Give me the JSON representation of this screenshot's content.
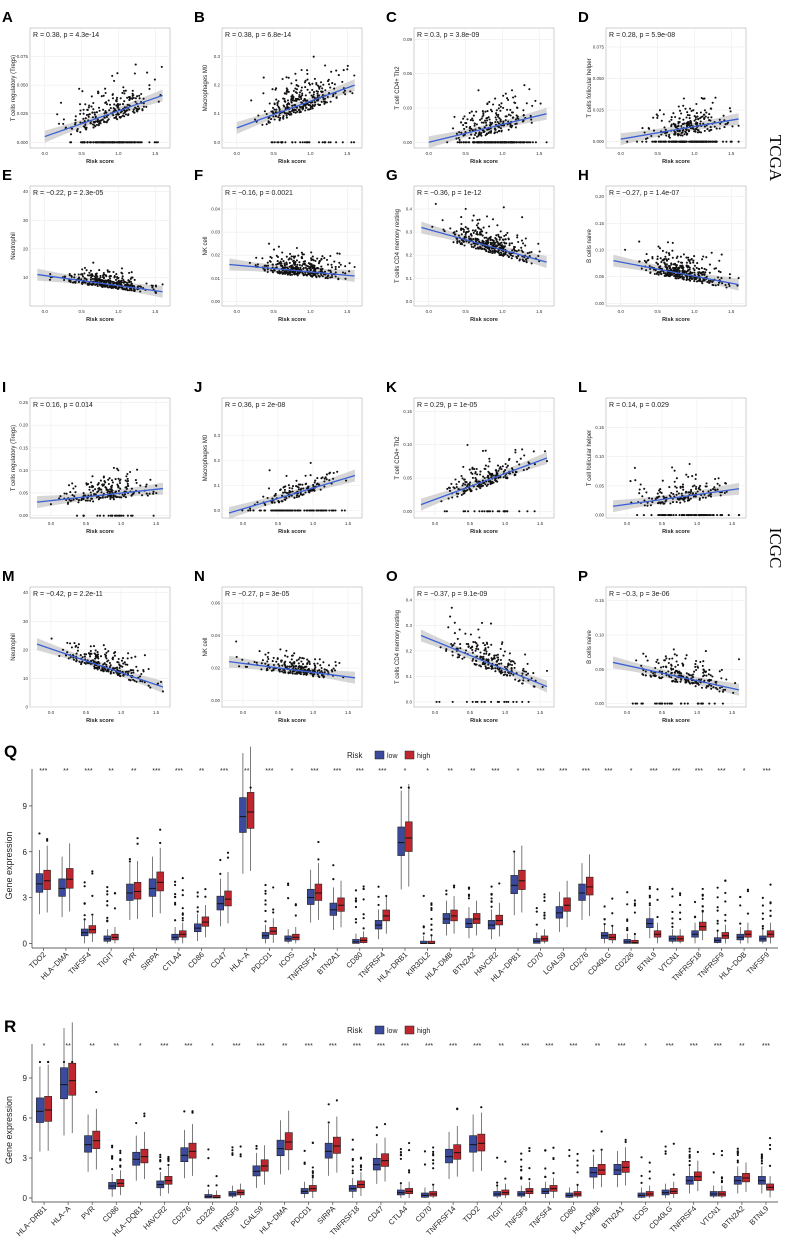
{
  "colors": {
    "low": "#3b4a9c",
    "high": "#c0262e",
    "fit": "#3a60d6",
    "band": "#c8c8c8"
  },
  "side_labels": {
    "tcga": "TCGA",
    "icgc": "ICGC"
  },
  "chart_data": [
    {
      "type": "scatter",
      "panel": "A",
      "ylabel": "T cells regulatory (Tregs)",
      "xlabel": "Risk score",
      "stat": "R = 0.38, p = 4.3e-14",
      "x_ticks": [
        "0.0",
        "0.5",
        "1.0",
        "1.5"
      ],
      "xlim": [
        -0.2,
        1.7
      ],
      "y_ticks": [
        "0.000",
        "0.025",
        "0.050",
        "0.075"
      ],
      "ylim": [
        -0.005,
        0.1
      ],
      "fit": [
        [
          0.0,
          0.005
        ],
        [
          1.6,
          0.041
        ]
      ],
      "n": 350,
      "zero_frac": 0.3,
      "sd": 0.02,
      "seed": 11
    },
    {
      "type": "scatter",
      "panel": "B",
      "ylabel": "Macrophages M0",
      "xlabel": "Risk score",
      "stat": "R = 0.38, p = 6.8e-14",
      "x_ticks": [
        "0.0",
        "0.5",
        "1.0",
        "1.5"
      ],
      "xlim": [
        -0.2,
        1.7
      ],
      "y_ticks": [
        "0.0",
        "0.1",
        "0.2",
        "0.3"
      ],
      "ylim": [
        -0.02,
        0.4
      ],
      "fit": [
        [
          0.0,
          0.05
        ],
        [
          1.6,
          0.2
        ]
      ],
      "n": 350,
      "zero_frac": 0.1,
      "sd": 0.08,
      "seed": 12
    },
    {
      "type": "scatter",
      "panel": "C",
      "ylabel": "T cell CD4+ Th2",
      "xlabel": "Risk score",
      "stat": "R = 0.3, p = 3.8e-09",
      "x_ticks": [
        "0.0",
        "0.5",
        "1.0",
        "1.5"
      ],
      "xlim": [
        -0.2,
        1.7
      ],
      "y_ticks": [
        "0.00",
        "0.03",
        "0.06",
        "0.09"
      ],
      "ylim": [
        -0.005,
        0.1
      ],
      "fit": [
        [
          0.0,
          0.0
        ],
        [
          1.6,
          0.025
        ]
      ],
      "n": 350,
      "zero_frac": 0.45,
      "sd": 0.018,
      "seed": 13
    },
    {
      "type": "scatter",
      "panel": "D",
      "ylabel": "T cells follicular helper",
      "xlabel": "Risk score",
      "stat": "R = 0.28, p = 5.9e-08",
      "x_ticks": [
        "0.0",
        "0.5",
        "1.0",
        "1.5"
      ],
      "xlim": [
        -0.2,
        1.7
      ],
      "y_ticks": [
        "0.000",
        "0.025",
        "0.050",
        "0.075"
      ],
      "ylim": [
        -0.005,
        0.09
      ],
      "fit": [
        [
          0.0,
          0.002
        ],
        [
          1.6,
          0.018
        ]
      ],
      "n": 350,
      "zero_frac": 0.4,
      "sd": 0.016,
      "seed": 14
    },
    {
      "type": "scatter",
      "panel": "E",
      "ylabel": "Neutrophil",
      "xlabel": "Risk score",
      "stat": "R = −0.22, p = 2.3e-05",
      "x_ticks": [
        "0.0",
        "0.5",
        "1.0",
        "1.5"
      ],
      "xlim": [
        -0.2,
        1.7
      ],
      "y_ticks": [
        "10",
        "20",
        "30",
        "40"
      ],
      "ylim": [
        0,
        42
      ],
      "fit": [
        [
          -0.1,
          11
        ],
        [
          1.6,
          5
        ]
      ],
      "n": 350,
      "zero_frac": 0,
      "sd": 3.5,
      "seed": 15
    },
    {
      "type": "scatter",
      "panel": "F",
      "ylabel": "NK cell",
      "xlabel": "Risk score",
      "stat": "R = −0.16, p = 0.0021",
      "x_ticks": [
        "0.0",
        "0.5",
        "1.0",
        "1.5"
      ],
      "xlim": [
        -0.2,
        1.7
      ],
      "y_ticks": [
        "0.00",
        "0.01",
        "0.02",
        "0.03",
        "0.04"
      ],
      "ylim": [
        -0.002,
        0.05
      ],
      "fit": [
        [
          -0.1,
          0.016
        ],
        [
          1.6,
          0.011
        ]
      ],
      "n": 350,
      "zero_frac": 0,
      "sd": 0.006,
      "seed": 16
    },
    {
      "type": "scatter",
      "panel": "G",
      "ylabel": "T cells CD4 memory resting",
      "xlabel": "Risk score",
      "stat": "R = −0.36, p = 1e-12",
      "x_ticks": [
        "0.0",
        "0.5",
        "1.0",
        "1.5"
      ],
      "xlim": [
        -0.2,
        1.7
      ],
      "y_ticks": [
        "0.0",
        "0.1",
        "0.2",
        "0.3",
        "0.4"
      ],
      "ylim": [
        -0.02,
        0.5
      ],
      "fit": [
        [
          -0.1,
          0.32
        ],
        [
          1.6,
          0.17
        ]
      ],
      "n": 350,
      "zero_frac": 0,
      "sd": 0.075,
      "seed": 17
    },
    {
      "type": "scatter",
      "panel": "H",
      "ylabel": "B cells naive",
      "xlabel": "Risk score",
      "stat": "R = −0.27, p = 1.4e-07",
      "x_ticks": [
        "0.0",
        "0.5",
        "1.0",
        "1.5"
      ],
      "xlim": [
        -0.2,
        1.7
      ],
      "y_ticks": [
        "0.00",
        "0.05",
        "0.10",
        "0.15",
        "0.20"
      ],
      "ylim": [
        -0.005,
        0.22
      ],
      "fit": [
        [
          -0.1,
          0.08
        ],
        [
          1.6,
          0.035
        ]
      ],
      "n": 350,
      "zero_frac": 0,
      "sd": 0.03,
      "seed": 18
    },
    {
      "type": "scatter",
      "panel": "I",
      "ylabel": "T cells regulatory (Tregs)",
      "xlabel": "Risk score",
      "stat": "R = 0.16, p = 0.014",
      "x_ticks": [
        "0.0",
        "0.5",
        "1.0",
        "1.5"
      ],
      "xlim": [
        -0.3,
        1.7
      ],
      "y_ticks": [
        "0.00",
        "0.05",
        "0.10",
        "0.15",
        "0.20",
        "0.25"
      ],
      "ylim": [
        -0.005,
        0.26
      ],
      "fit": [
        [
          -0.2,
          0.03
        ],
        [
          1.6,
          0.06
        ]
      ],
      "n": 230,
      "zero_frac": 0.12,
      "sd": 0.035,
      "seed": 21
    },
    {
      "type": "scatter",
      "panel": "J",
      "ylabel": "Macrophages M0",
      "xlabel": "Risk score",
      "stat": "R = 0.36, p = 2e-08",
      "x_ticks": [
        "0.0",
        "0.5",
        "1.0",
        "1.5"
      ],
      "xlim": [
        -0.3,
        1.7
      ],
      "y_ticks": [
        "0.0",
        "0.1",
        "0.2",
        "0.3"
      ],
      "ylim": [
        -0.03,
        0.45
      ],
      "fit": [
        [
          -0.2,
          -0.01
        ],
        [
          1.6,
          0.14
        ]
      ],
      "n": 230,
      "zero_frac": 0.35,
      "sd": 0.05,
      "seed": 22
    },
    {
      "type": "scatter",
      "panel": "K",
      "ylabel": "T cell CD4+ Th2",
      "xlabel": "Risk score",
      "stat": "R = 0.29, p = 1e-05",
      "x_ticks": [
        "0.0",
        "0.5",
        "1.0",
        "1.5"
      ],
      "xlim": [
        -0.3,
        1.7
      ],
      "y_ticks": [
        "0.00",
        "0.05",
        "0.10",
        "0.15"
      ],
      "ylim": [
        -0.01,
        0.17
      ],
      "fit": [
        [
          -0.2,
          0.01
        ],
        [
          1.6,
          0.08
        ]
      ],
      "n": 230,
      "zero_frac": 0.1,
      "sd": 0.025,
      "seed": 23
    },
    {
      "type": "scatter",
      "panel": "L",
      "ylabel": "T cell follicular helper",
      "xlabel": "Risk score",
      "stat": "R = 0.14, p = 0.029",
      "x_ticks": [
        "0.0",
        "0.5",
        "1.0",
        "1.5"
      ],
      "xlim": [
        -0.3,
        1.7
      ],
      "y_ticks": [
        "0.00",
        "0.05",
        "0.10",
        "0.15"
      ],
      "ylim": [
        -0.005,
        0.2
      ],
      "fit": [
        [
          -0.2,
          0.015
        ],
        [
          1.6,
          0.045
        ]
      ],
      "n": 230,
      "zero_frac": 0.3,
      "sd": 0.03,
      "seed": 24
    },
    {
      "type": "scatter",
      "panel": "M",
      "ylabel": "Neutrophil",
      "xlabel": "Risk score",
      "stat": "R = −0.42, p = 2.2e-11",
      "x_ticks": [
        "0.0",
        "0.5",
        "1.0",
        "1.5"
      ],
      "xlim": [
        -0.3,
        1.7
      ],
      "y_ticks": [
        "0",
        "10",
        "20",
        "30",
        "40"
      ],
      "ylim": [
        0,
        42
      ],
      "fit": [
        [
          -0.2,
          22
        ],
        [
          1.6,
          7
        ]
      ],
      "n": 230,
      "zero_frac": 0,
      "sd": 5,
      "seed": 25
    },
    {
      "type": "scatter",
      "panel": "N",
      "ylabel": "NK cell",
      "xlabel": "Risk score",
      "stat": "R = −0.27, p = 3e-05",
      "x_ticks": [
        "0.0",
        "0.5",
        "1.0",
        "1.5"
      ],
      "xlim": [
        -0.3,
        1.7
      ],
      "y_ticks": [
        "0.00",
        "0.02",
        "0.04",
        "0.06"
      ],
      "ylim": [
        -0.004,
        0.07
      ],
      "fit": [
        [
          -0.2,
          0.024
        ],
        [
          1.6,
          0.014
        ]
      ],
      "n": 230,
      "zero_frac": 0,
      "sd": 0.007,
      "seed": 26
    },
    {
      "type": "scatter",
      "panel": "O",
      "ylabel": "T cells CD4 memory resting",
      "xlabel": "Risk score",
      "stat": "R = −0.37, p = 9.1e-09",
      "x_ticks": [
        "0.0",
        "0.5",
        "1.0",
        "1.5"
      ],
      "xlim": [
        -0.3,
        1.7
      ],
      "y_ticks": [
        "0.0",
        "0.1",
        "0.2",
        "0.3",
        "0.4"
      ],
      "ylim": [
        -0.02,
        0.45
      ],
      "fit": [
        [
          -0.2,
          0.26
        ],
        [
          1.6,
          0.06
        ]
      ],
      "n": 230,
      "zero_frac": 0.08,
      "sd": 0.08,
      "seed": 27
    },
    {
      "type": "scatter",
      "panel": "P",
      "ylabel": "B cells naive",
      "xlabel": "Risk score",
      "stat": "R = −0.3, p = 3e-06",
      "x_ticks": [
        "0.0",
        "0.5",
        "1.0",
        "1.5"
      ],
      "xlim": [
        -0.3,
        1.7
      ],
      "y_ticks": [
        "0.00",
        "0.05",
        "0.10",
        "0.15"
      ],
      "ylim": [
        -0.005,
        0.17
      ],
      "fit": [
        [
          -0.2,
          0.06
        ],
        [
          1.6,
          0.02
        ]
      ],
      "n": 230,
      "zero_frac": 0.12,
      "sd": 0.025,
      "seed": 28
    },
    {
      "type": "boxplot",
      "panel": "Q",
      "legend_title": "Risk",
      "legend": [
        "low",
        "high"
      ],
      "ylabel": "Gene expression",
      "y_ticks": [
        "0",
        "3",
        "6",
        "9"
      ],
      "ylim": [
        -0.3,
        10.5
      ],
      "categories": [
        "TDO2",
        "HLA−DMA",
        "TNFSF4",
        "TIGIT",
        "PVR",
        "SIRPA",
        "CTLA4",
        "CD86",
        "CD47",
        "HLA−A",
        "PDCD1",
        "ICOS",
        "TNFRSF14",
        "BTN2A1",
        "CD80",
        "TNFRSF4",
        "HLA−DRB1",
        "KIR3DL2",
        "HLA−DMB",
        "BTN2A2",
        "HAVCR2",
        "HLA−DPB1",
        "CD70",
        "LGALS9",
        "CD276",
        "CD40LG",
        "CD226",
        "BTNL9",
        "VTCN1",
        "TNFRSF18",
        "TNFRSF9",
        "HLA−DOB",
        "TNFSF9"
      ],
      "significance": [
        "***",
        "**",
        "***",
        "**",
        "**",
        "***",
        "***",
        "**",
        "***",
        "**",
        "***",
        "*",
        "***",
        "***",
        "***",
        "***",
        "*",
        "*",
        "**",
        "**",
        "***",
        "*",
        "***",
        "***",
        "***",
        "***",
        "*",
        "***",
        "***",
        "***",
        "***",
        "*",
        "***"
      ],
      "low_median": [
        3.9,
        3.6,
        0.7,
        0.3,
        3.3,
        3.6,
        0.4,
        1.0,
        2.6,
        8.3,
        0.5,
        0.3,
        3.0,
        2.2,
        0.1,
        1.2,
        6.6,
        0.0,
        1.6,
        1.3,
        1.2,
        3.8,
        0.15,
        2.0,
        3.3,
        0.5,
        0.1,
        1.3,
        0.3,
        0.6,
        0.2,
        0.4,
        0.3
      ],
      "high_median": [
        4.1,
        4.2,
        0.9,
        0.4,
        3.4,
        4.0,
        0.6,
        1.4,
        2.9,
        8.6,
        0.8,
        0.4,
        3.3,
        2.5,
        0.2,
        1.8,
        6.9,
        0.0,
        1.8,
        1.6,
        1.5,
        4.1,
        0.3,
        2.5,
        3.7,
        0.4,
        0.05,
        0.6,
        0.3,
        1.1,
        0.5,
        0.6,
        0.6
      ]
    },
    {
      "type": "boxplot",
      "panel": "R",
      "legend_title": "Risk",
      "legend": [
        "low",
        "high"
      ],
      "ylabel": "Gene expression",
      "y_ticks": [
        "0",
        "3",
        "6",
        "9"
      ],
      "ylim": [
        -0.3,
        10.5
      ],
      "categories": [
        "HLA−DRB1",
        "HLA−A",
        "PVR",
        "CD86",
        "HLA−DQB1",
        "HAVCR2",
        "CD276",
        "CD226",
        "TNFRSF9",
        "LGALS9",
        "HLA−DMA",
        "PDCD1",
        "SIRPA",
        "TNFRSF18",
        "CD47",
        "CTLA4",
        "CD70",
        "TNFRSF14",
        "TDO2",
        "TIGIT",
        "TNFSF9",
        "TNFSF4",
        "CD80",
        "HLA−DMB",
        "BTN2A1",
        "ICOS",
        "CD40LG",
        "TNFRSF4",
        "VTCN1",
        "BTN2A2",
        "BTNL9"
      ],
      "significance": [
        "*",
        "**",
        "**",
        "**",
        "*",
        "***",
        "***",
        "*",
        "***",
        "***",
        "**",
        "***",
        "***",
        "***",
        "***",
        "***",
        "***",
        "***",
        "***",
        "**",
        "***",
        "***",
        "***",
        "**",
        "***",
        "*",
        "***",
        "***",
        "***",
        "**",
        "***"
      ],
      "low_median": [
        6.5,
        8.5,
        4.0,
        0.9,
        2.9,
        1.0,
        3.2,
        0.1,
        0.3,
        2.0,
        3.7,
        0.5,
        3.5,
        0.7,
        2.5,
        0.4,
        0.2,
        3.1,
        4.0,
        0.3,
        0.3,
        0.5,
        0.2,
        1.9,
        2.1,
        0.2,
        0.4,
        1.3,
        0.3,
        1.3,
        1.3
      ],
      "high_median": [
        6.6,
        8.8,
        4.3,
        1.1,
        3.1,
        1.3,
        3.5,
        0.05,
        0.4,
        2.4,
        4.2,
        0.7,
        3.9,
        1.0,
        2.8,
        0.5,
        0.3,
        3.4,
        4.1,
        0.4,
        0.5,
        0.7,
        0.3,
        2.1,
        2.3,
        0.3,
        0.5,
        1.6,
        0.3,
        1.5,
        0.8
      ]
    }
  ]
}
